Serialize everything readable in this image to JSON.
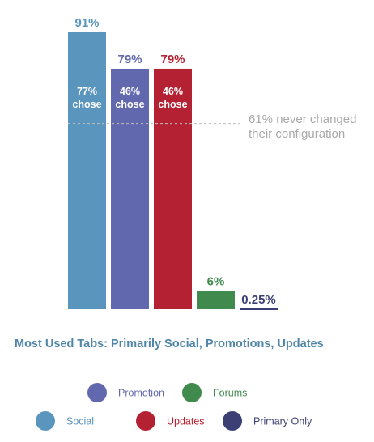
{
  "chart_data": {
    "type": "bar",
    "title": "Most Used Tabs: Primarily Social, Promotions, Updates",
    "categories": [
      "Social",
      "Promotion",
      "Updates",
      "Forums",
      "Primary Only"
    ],
    "values": [
      91,
      79,
      79,
      6,
      0.25
    ],
    "value_labels": [
      "91%",
      "79%",
      "79%",
      "6%",
      "0.25%"
    ],
    "inner_labels": [
      {
        "index": 0,
        "lines": [
          "77%",
          "chose"
        ]
      },
      {
        "index": 1,
        "lines": [
          "46%",
          "chose"
        ]
      },
      {
        "index": 2,
        "lines": [
          "46%",
          "chose"
        ]
      }
    ],
    "colors": [
      "#5a95bd",
      "#6268ad",
      "#b42132",
      "#3f8a4c",
      "#3b3f74"
    ],
    "ylim": [
      0,
      100
    ],
    "annotation": {
      "value": 61,
      "lines": [
        "61% never changed",
        "their configuration"
      ]
    },
    "legend": {
      "row1": [
        {
          "index": 1,
          "label": "Promotion"
        },
        {
          "index": 3,
          "label": "Forums"
        }
      ],
      "row2": [
        {
          "index": 0,
          "label": "Social"
        },
        {
          "index": 2,
          "label": "Updates"
        },
        {
          "index": 4,
          "label": "Primary Only"
        }
      ]
    }
  }
}
